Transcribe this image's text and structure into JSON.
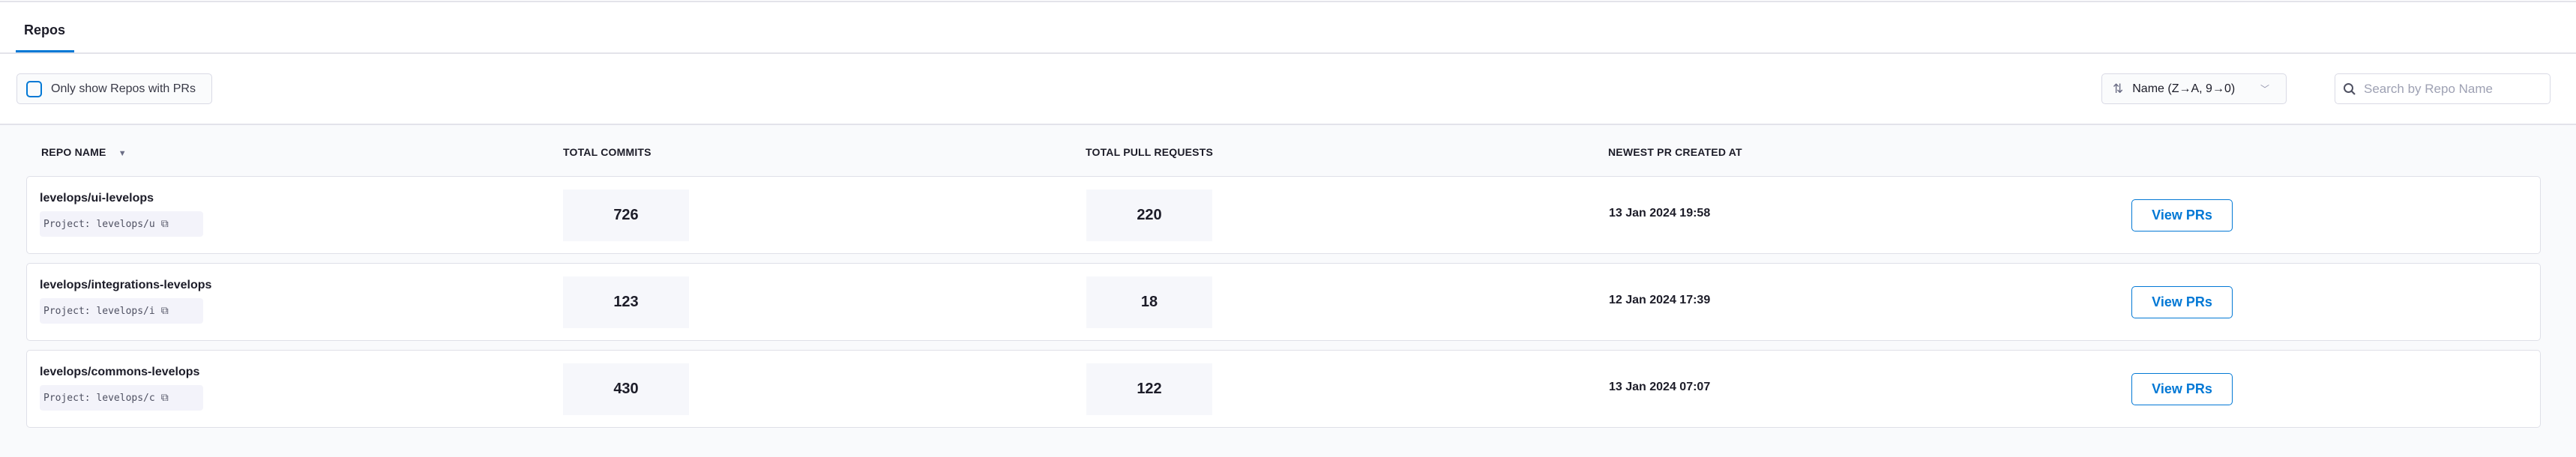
{
  "tabs": [
    {
      "label": "Repos",
      "active": true
    }
  ],
  "filter": {
    "only_prs_label": "Only show Repos with PRs",
    "checked": false
  },
  "sort": {
    "icon": "sort-arrows-icon",
    "value": "Name (Z→A, 9→0)"
  },
  "search": {
    "placeholder": "Search by Repo Name",
    "value": ""
  },
  "table": {
    "columns": [
      "REPO NAME",
      "TOTAL COMMITS",
      "TOTAL PULL REQUESTS",
      "NEWEST PR CREATED AT"
    ],
    "rows": [
      {
        "name": "levelops/ui-levelops",
        "project": "Project: levelops/u",
        "commits": "726",
        "prs": "220",
        "newest": "13 Jan 2024 19:58",
        "action": "View PRs"
      },
      {
        "name": "levelops/integrations-levelops",
        "project": "Project: levelops/i",
        "commits": "123",
        "prs": "18",
        "newest": "12 Jan 2024 17:39",
        "action": "View PRs"
      },
      {
        "name": "levelops/commons-levelops",
        "project": "Project: levelops/c",
        "commits": "430",
        "prs": "122",
        "newest": "13 Jan 2024 07:07",
        "action": "View PRs"
      }
    ]
  },
  "colors": {
    "accent": "#0278d5",
    "table_bg": "#f9fafc",
    "border": "#e3e3ea"
  }
}
